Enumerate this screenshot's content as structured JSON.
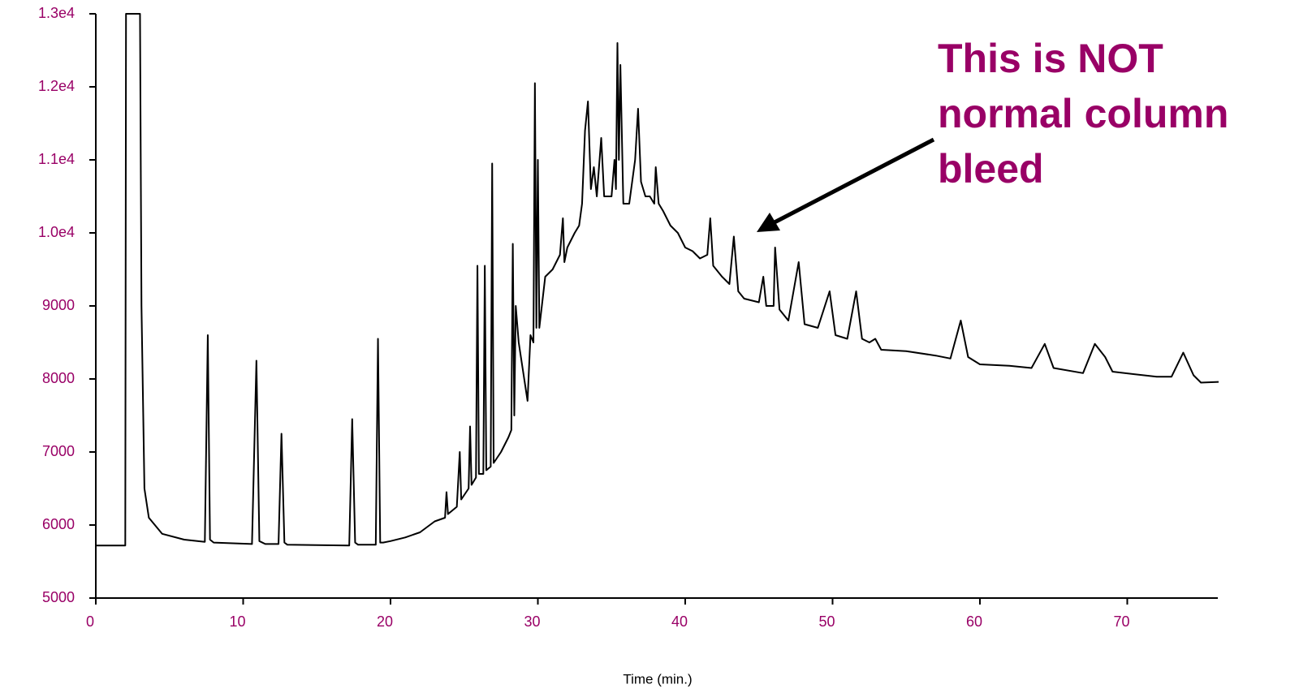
{
  "chart_data": {
    "type": "line",
    "x_label": "Time (min.)",
    "annotation": [
      "This is NOT",
      "normal column",
      "bleed"
    ],
    "color": "#000000",
    "tick_color": "#990066",
    "annotation_color": "#990066",
    "xlim": [
      0,
      76.2
    ],
    "xticks": [
      0,
      10,
      20,
      30,
      40,
      50,
      60,
      70
    ],
    "ylim": [
      5000,
      13000
    ],
    "yticks": [
      5000,
      6000,
      7000,
      8000,
      9000,
      {
        "value": 10000,
        "label": "1.0e4"
      },
      {
        "value": 11000,
        "label": "1.1e4"
      },
      {
        "value": 12000,
        "label": "1.2e4"
      },
      {
        "value": 13000,
        "label": "1.3e4"
      }
    ],
    "x": [
      0,
      2.0,
      2.05,
      2.9,
      3.0,
      3.1,
      3.3,
      3.6,
      4.5,
      6,
      7.4,
      7.6,
      7.75,
      8,
      10.6,
      10.9,
      11.1,
      11.5,
      12.4,
      12.6,
      12.8,
      13,
      17.2,
      17.4,
      17.6,
      17.8,
      19.0,
      19.15,
      19.3,
      19.5,
      20,
      21,
      22,
      23,
      23.7,
      23.8,
      23.9,
      24.5,
      24.7,
      24.8,
      25.3,
      25.4,
      25.5,
      25.8,
      25.9,
      26.0,
      26.3,
      26.4,
      26.5,
      26.8,
      26.9,
      27.0,
      27.5,
      28.0,
      28.2,
      28.3,
      28.4,
      28.5,
      28.7,
      29.0,
      29.3,
      29.5,
      29.7,
      29.8,
      29.9,
      30.0,
      30.1,
      30.5,
      31,
      31.5,
      31.7,
      31.8,
      32,
      32.5,
      32.8,
      33.0,
      33.2,
      33.4,
      33.6,
      33.8,
      34.0,
      34.3,
      34.5,
      35.0,
      35.2,
      35.3,
      35.4,
      35.5,
      35.6,
      35.8,
      36.2,
      36.6,
      36.8,
      37.0,
      37.3,
      37.6,
      37.9,
      38.0,
      38.2,
      38.5,
      39,
      39.5,
      40,
      40.5,
      41,
      41.5,
      41.7,
      41.9,
      42.5,
      43,
      43.3,
      43.6,
      44,
      45,
      45.3,
      45.5,
      46,
      46.1,
      46.4,
      47,
      47.7,
      48.1,
      49,
      49.8,
      50.2,
      51,
      51.6,
      52,
      52.5,
      52.9,
      53.3,
      55,
      57,
      58,
      58.7,
      59.2,
      60,
      62,
      63.5,
      64.4,
      65,
      67,
      67.8,
      68.5,
      69,
      72,
      73,
      73.8,
      74.5,
      75,
      76.2
    ],
    "values": [
      5720,
      5720,
      13000,
      13000,
      13000,
      9000,
      6500,
      6100,
      5880,
      5800,
      5770,
      8600,
      5800,
      5760,
      5740,
      8250,
      5780,
      5740,
      5740,
      7250,
      5760,
      5730,
      5720,
      7450,
      5760,
      5730,
      5730,
      8550,
      5760,
      5760,
      5780,
      5830,
      5900,
      6050,
      6100,
      6450,
      6150,
      6250,
      7000,
      6350,
      6500,
      7350,
      6550,
      6650,
      9550,
      6700,
      6700,
      9550,
      6750,
      6800,
      10950,
      6850,
      7000,
      7200,
      7300,
      9850,
      7500,
      9000,
      8500,
      8100,
      7700,
      8600,
      8500,
      12050,
      8700,
      11000,
      8700,
      9400,
      9500,
      9700,
      10200,
      9600,
      9800,
      10000,
      10100,
      10400,
      11400,
      11800,
      10600,
      10900,
      10500,
      11300,
      10500,
      10500,
      11000,
      10600,
      12600,
      11000,
      12300,
      10400,
      10400,
      11000,
      11700,
      10700,
      10500,
      10500,
      10400,
      10900,
      10400,
      10300,
      10100,
      10000,
      9800,
      9750,
      9650,
      9700,
      10200,
      9550,
      9400,
      9300,
      9950,
      9200,
      9100,
      9050,
      9400,
      9000,
      9000,
      9800,
      8950,
      8800,
      9600,
      8750,
      8700,
      9200,
      8600,
      8550,
      9200,
      8550,
      8500,
      8550,
      8400,
      8380,
      8320,
      8280,
      8800,
      8300,
      8200,
      8180,
      8150,
      8480,
      8150,
      8080,
      8480,
      8300,
      8100,
      8030,
      8030,
      8360,
      8050,
      7950,
      7960
    ]
  }
}
